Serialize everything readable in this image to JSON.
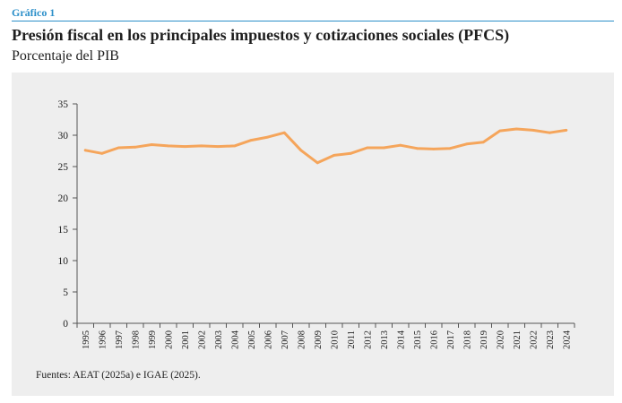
{
  "header": {
    "figure_label": "Gráfico 1",
    "title": "Presión fiscal en los principales impuestos y cotizaciones sociales (PFCS)",
    "subtitle": "Porcentaje del PIB"
  },
  "footer": {
    "source": "Fuentes: AEAT (2025a) e IGAE (2025)."
  },
  "chart_data": {
    "type": "line",
    "x": [
      1995,
      1996,
      1997,
      1998,
      1999,
      2000,
      2001,
      2002,
      2003,
      2004,
      2005,
      2006,
      2007,
      2008,
      2009,
      2010,
      2011,
      2012,
      2013,
      2014,
      2015,
      2016,
      2017,
      2018,
      2019,
      2020,
      2021,
      2022,
      2023,
      2024
    ],
    "series": [
      {
        "values": [
          27.6,
          27.1,
          28.0,
          28.1,
          28.5,
          28.3,
          28.2,
          28.3,
          28.2,
          28.3,
          29.2,
          29.7,
          30.4,
          27.6,
          25.6,
          26.8,
          27.1,
          28.0,
          28.0,
          28.4,
          27.9,
          27.8,
          27.9,
          28.6,
          28.9,
          30.7,
          31.0,
          30.8,
          30.4,
          30.8
        ],
        "color": "#f5a55b"
      }
    ],
    "yticks": [
      0,
      5,
      10,
      15,
      20,
      25,
      30,
      35
    ],
    "ylim": [
      0,
      35
    ],
    "xlabel": "",
    "ylabel": "",
    "grid": false,
    "legend": "none",
    "background": "#eeeeee",
    "axis_color": "#555555"
  }
}
